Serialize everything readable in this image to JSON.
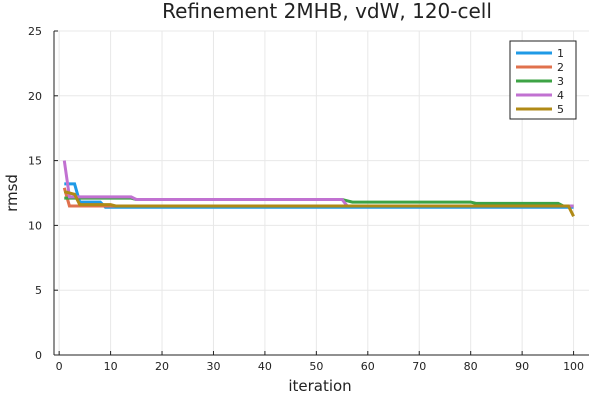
{
  "chart_data": {
    "type": "line",
    "title": "Refinement 2MHB, vdW, 120-cell",
    "xlabel": "iteration",
    "ylabel": "rmsd",
    "xlim": [
      -1,
      103
    ],
    "ylim": [
      0,
      25
    ],
    "xticks": [
      0,
      10,
      20,
      30,
      40,
      50,
      60,
      70,
      80,
      90,
      100
    ],
    "yticks": [
      0,
      5,
      10,
      15,
      20,
      25
    ],
    "grid": true,
    "legend_position": "top-right",
    "series": [
      {
        "name": "1",
        "color": "#1f9ae6",
        "points": [
          [
            1,
            13.2
          ],
          [
            3,
            13.2
          ],
          [
            4,
            11.8
          ],
          [
            8,
            11.8
          ],
          [
            9,
            11.4
          ],
          [
            100,
            11.4
          ]
        ]
      },
      {
        "name": "2",
        "color": "#e0714d",
        "points": [
          [
            1,
            12.9
          ],
          [
            2,
            11.5
          ],
          [
            100,
            11.5
          ]
        ]
      },
      {
        "name": "3",
        "color": "#3da345",
        "points": [
          [
            1,
            12.1
          ],
          [
            14,
            12.1
          ],
          [
            15,
            12.0
          ],
          [
            55,
            12.0
          ],
          [
            56,
            11.9
          ],
          [
            57,
            11.8
          ],
          [
            80,
            11.8
          ],
          [
            81,
            11.7
          ],
          [
            97,
            11.7
          ],
          [
            98,
            11.5
          ],
          [
            100,
            11.5
          ]
        ]
      },
      {
        "name": "4",
        "color": "#c171d1",
        "points": [
          [
            1,
            15.0
          ],
          [
            2,
            12.2
          ],
          [
            14,
            12.2
          ],
          [
            15,
            12.0
          ],
          [
            55,
            12.0
          ],
          [
            56,
            11.5
          ],
          [
            100,
            11.5
          ]
        ]
      },
      {
        "name": "5",
        "color": "#b08a16",
        "points": [
          [
            1,
            12.6
          ],
          [
            3,
            12.4
          ],
          [
            4,
            11.6
          ],
          [
            10,
            11.6
          ],
          [
            11,
            11.5
          ],
          [
            99,
            11.5
          ],
          [
            100,
            10.7
          ]
        ]
      }
    ]
  }
}
